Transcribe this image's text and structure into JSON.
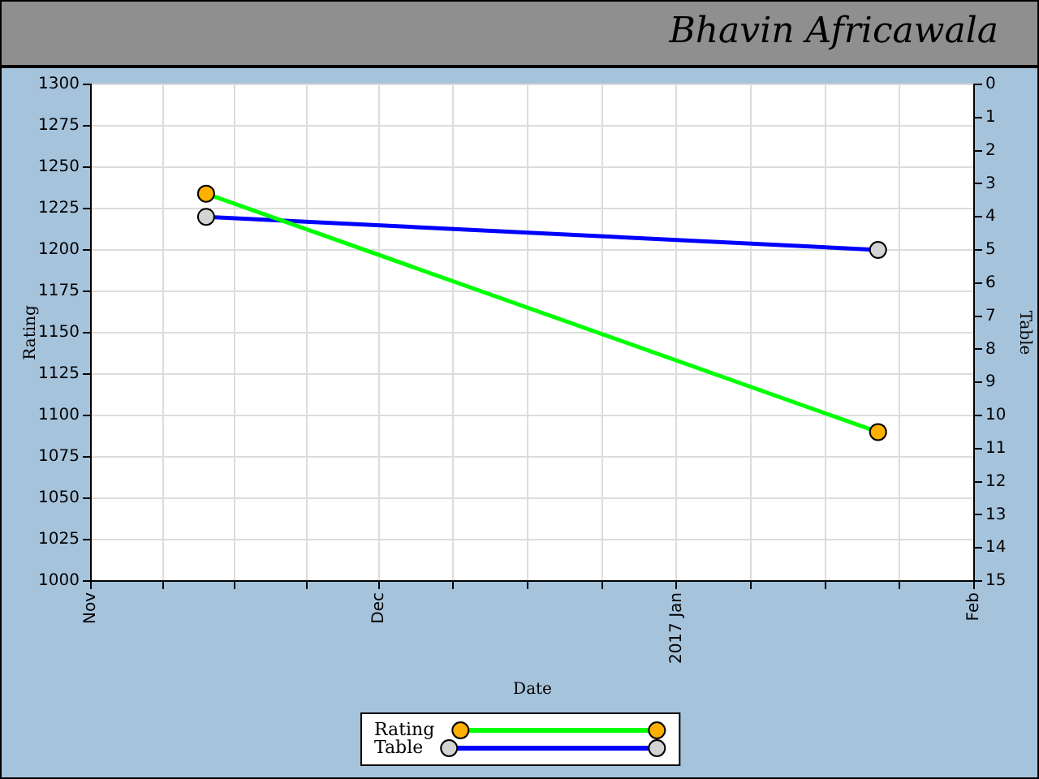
{
  "chart_data": {
    "type": "line",
    "title": "Bhavin Africawala",
    "xlabel": "Date",
    "ylabel": "Rating",
    "y2label": "Table",
    "x": [
      "2016-11-13",
      "2017-01-22"
    ],
    "series": [
      {
        "name": "Rating",
        "color": "#00ff00",
        "colors": [
          "#ffb000",
          "#ffb000"
        ],
        "values": [
          1234,
          1090
        ]
      },
      {
        "name": "Table",
        "color": "#0000ff",
        "colors": [
          "#d3d3d3",
          "#d3d3d3"
        ],
        "values": [
          4,
          5
        ],
        "axis": "y2"
      }
    ],
    "xlim": [
      "2016-11-01",
      "2017-02-01"
    ],
    "xticks": [
      {
        "value": "2016-11-01",
        "label": "Nov"
      },
      {
        "value": "2016-11-08T12:00",
        "label": null
      },
      {
        "value": "2016-11-16",
        "label": null
      },
      {
        "value": "2016-11-23T12:00",
        "label": null
      },
      {
        "value": "2016-12-01",
        "label": "Dec"
      },
      {
        "value": "2016-12-08T18:00",
        "label": null
      },
      {
        "value": "2016-12-16T12:00",
        "label": null
      },
      {
        "value": "2016-12-24T06:00",
        "label": null
      },
      {
        "value": "2017-01-01",
        "label": "2017 Jan"
      },
      {
        "value": "2017-01-08T18:00",
        "label": null
      },
      {
        "value": "2017-01-16T12:00",
        "label": null
      },
      {
        "value": "2017-01-24T06:00",
        "label": null
      },
      {
        "value": "2017-02-01",
        "label": "Feb"
      }
    ],
    "ylim": [
      1000,
      1300
    ],
    "yticks": [
      1000,
      1025,
      1050,
      1075,
      1100,
      1125,
      1150,
      1175,
      1200,
      1225,
      1250,
      1275,
      1300
    ],
    "y2lim": [
      15,
      0
    ],
    "y2ticks": [
      0,
      1,
      2,
      3,
      4,
      5,
      6,
      7,
      8,
      9,
      10,
      11,
      12,
      13,
      14,
      15
    ],
    "grid": true,
    "legend": "bottom",
    "marker": "circle",
    "line_style": "solid"
  }
}
